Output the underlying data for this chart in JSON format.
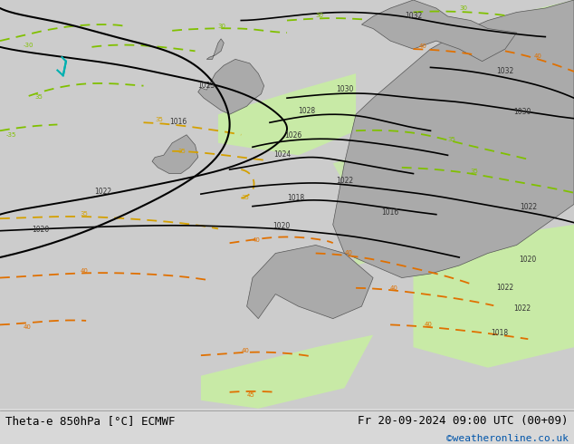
{
  "title_left": "Theta-e 850hPa [°C] ECMWF",
  "title_right": "Fr 20-09-2024 09:00 UTC (00+09)",
  "copyright": "©weatheronline.co.uk",
  "bg_color": "#d8d8d8",
  "map_bg": "#d8d8d8",
  "green_fill": "#c8f0a0",
  "land_gray": "#b8b8b8",
  "bottom_bar_color": "#e8e8e8",
  "isobar_color": "#000000",
  "theta_green_color": "#80c000",
  "theta_yellow_color": "#d4a000",
  "theta_orange_color": "#e07000",
  "theta_cyan_color": "#00b0b0",
  "figsize": [
    6.34,
    4.9
  ],
  "dpi": 100
}
